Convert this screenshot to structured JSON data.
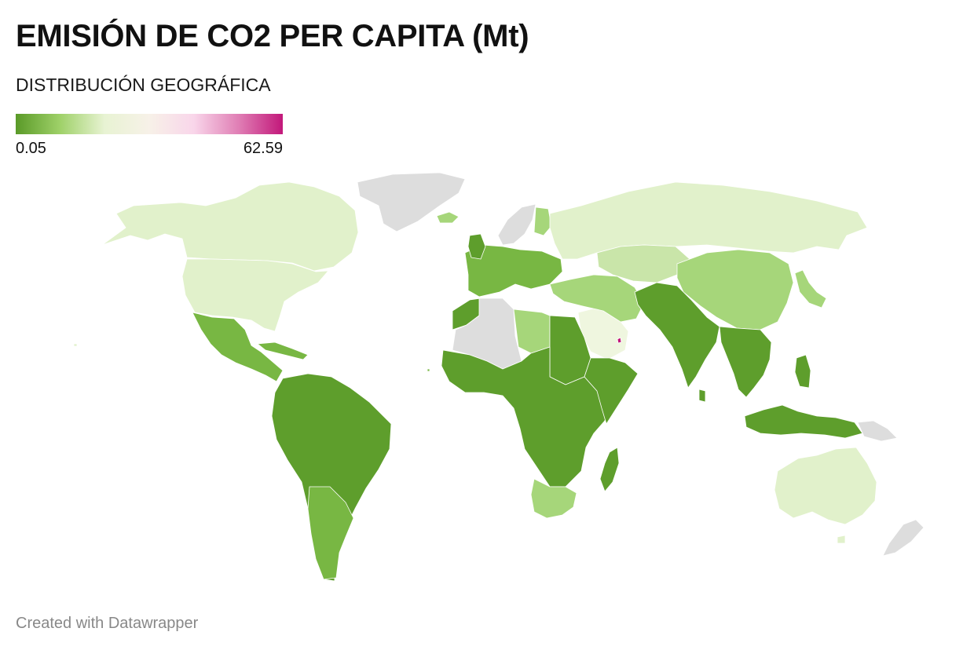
{
  "header": {
    "title": "EMISIÓN DE CO2 PER CAPITA (Mt)",
    "subtitle": "DISTRIBUCIÓN GEOGRÁFICA"
  },
  "legend": {
    "min_label": "0.05",
    "max_label": "62.59",
    "gradient_stops": [
      "#5a9a28",
      "#9fd169",
      "#e8f3d3",
      "#f7f1e8",
      "#f9d6ea",
      "#e07fb5",
      "#c2187a"
    ]
  },
  "map_colors": {
    "ocean": "#ffffff",
    "no_data": "#dddddd",
    "border": "#ffffff",
    "very_low": "#5e9e2c",
    "low": "#78b743",
    "low_medium": "#a6d67a",
    "medium_low": "#c9e5a9",
    "medium": "#e1f1cb",
    "pale": "#eff6df",
    "high": "#c2187a"
  },
  "footer": {
    "credit": "Created with Datawrapper"
  }
}
